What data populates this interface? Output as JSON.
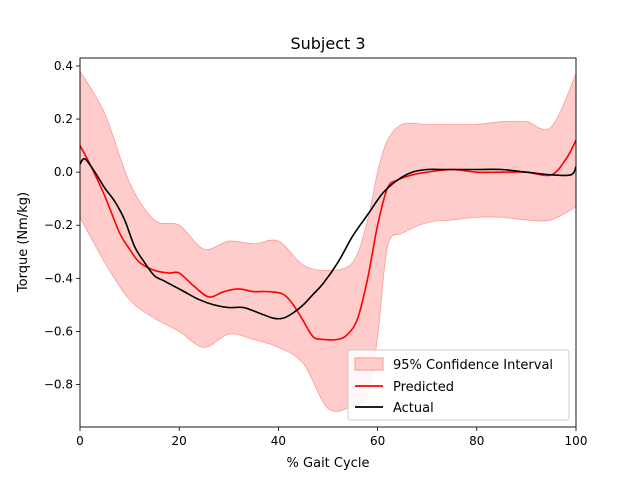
{
  "chart_data": {
    "type": "line",
    "title": "Subject 3",
    "xlabel": "% Gait Cycle",
    "ylabel": "Torque (Nm/kg)",
    "xlim": [
      0,
      100
    ],
    "ylim": [
      -0.96,
      0.43
    ],
    "xticks": [
      0,
      20,
      40,
      60,
      80,
      100
    ],
    "yticks": [
      -0.8,
      -0.6,
      -0.4,
      -0.2,
      0.0,
      0.2,
      0.4
    ],
    "ytick_labels": [
      "−0.8",
      "−0.6",
      "−0.4",
      "−0.2",
      "0.0",
      "0.2",
      "0.4"
    ],
    "grid": false,
    "legend_position": "lower-right",
    "legend": {
      "ci_label": "95% Confidence Interval",
      "predicted_label": "Predicted",
      "actual_label": "Actual"
    },
    "colors": {
      "ci_fill": "#ffcccc",
      "ci_edge": "#ff9999",
      "predicted": "#ff0000",
      "actual": "#000000"
    },
    "confidence_interval": {
      "x": [
        0,
        5,
        10,
        15,
        20,
        25,
        30,
        35,
        40,
        45,
        50,
        55,
        58,
        60,
        62,
        65,
        70,
        75,
        80,
        85,
        90,
        95,
        100
      ],
      "upper": [
        0.38,
        0.22,
        -0.04,
        -0.18,
        -0.2,
        -0.29,
        -0.26,
        -0.27,
        -0.26,
        -0.35,
        -0.37,
        -0.34,
        -0.18,
        0.0,
        0.12,
        0.18,
        0.18,
        0.18,
        0.18,
        0.19,
        0.19,
        0.17,
        0.37
      ],
      "lower": [
        -0.17,
        -0.34,
        -0.48,
        -0.55,
        -0.6,
        -0.66,
        -0.61,
        -0.63,
        -0.66,
        -0.72,
        -0.89,
        -0.88,
        -0.84,
        -0.62,
        -0.28,
        -0.23,
        -0.19,
        -0.18,
        -0.17,
        -0.17,
        -0.18,
        -0.18,
        -0.13
      ]
    },
    "series": [
      {
        "name": "Predicted",
        "x": [
          0,
          2,
          5,
          8,
          10,
          12,
          15,
          18,
          20,
          23,
          26,
          29,
          32,
          35,
          38,
          41,
          43,
          45,
          47,
          49,
          52,
          54,
          56,
          58,
          60,
          62,
          64,
          67,
          70,
          75,
          80,
          85,
          90,
          95,
          98,
          100
        ],
        "y": [
          0.1,
          0.03,
          -0.09,
          -0.23,
          -0.29,
          -0.34,
          -0.37,
          -0.38,
          -0.38,
          -0.43,
          -0.47,
          -0.45,
          -0.44,
          -0.45,
          -0.45,
          -0.46,
          -0.5,
          -0.56,
          -0.62,
          -0.63,
          -0.63,
          -0.61,
          -0.55,
          -0.4,
          -0.2,
          -0.06,
          -0.03,
          -0.01,
          0.0,
          0.01,
          0.0,
          0.0,
          0.0,
          -0.01,
          0.05,
          0.12
        ]
      },
      {
        "name": "Actual",
        "x": [
          0,
          1,
          3,
          5,
          7,
          9,
          11,
          13,
          15,
          17,
          19,
          21,
          24,
          27,
          30,
          33,
          36,
          39,
          41,
          43,
          45,
          47,
          49,
          52,
          55,
          58,
          61,
          64,
          67,
          70,
          73,
          76,
          80,
          85,
          90,
          95,
          99,
          100
        ],
        "y": [
          0.03,
          0.05,
          0.0,
          -0.06,
          -0.11,
          -0.18,
          -0.28,
          -0.34,
          -0.39,
          -0.41,
          -0.43,
          -0.45,
          -0.48,
          -0.5,
          -0.51,
          -0.51,
          -0.53,
          -0.55,
          -0.55,
          -0.53,
          -0.5,
          -0.46,
          -0.42,
          -0.34,
          -0.24,
          -0.16,
          -0.08,
          -0.03,
          0.0,
          0.01,
          0.01,
          0.01,
          0.01,
          0.01,
          0.0,
          -0.01,
          -0.01,
          0.02
        ]
      }
    ]
  }
}
